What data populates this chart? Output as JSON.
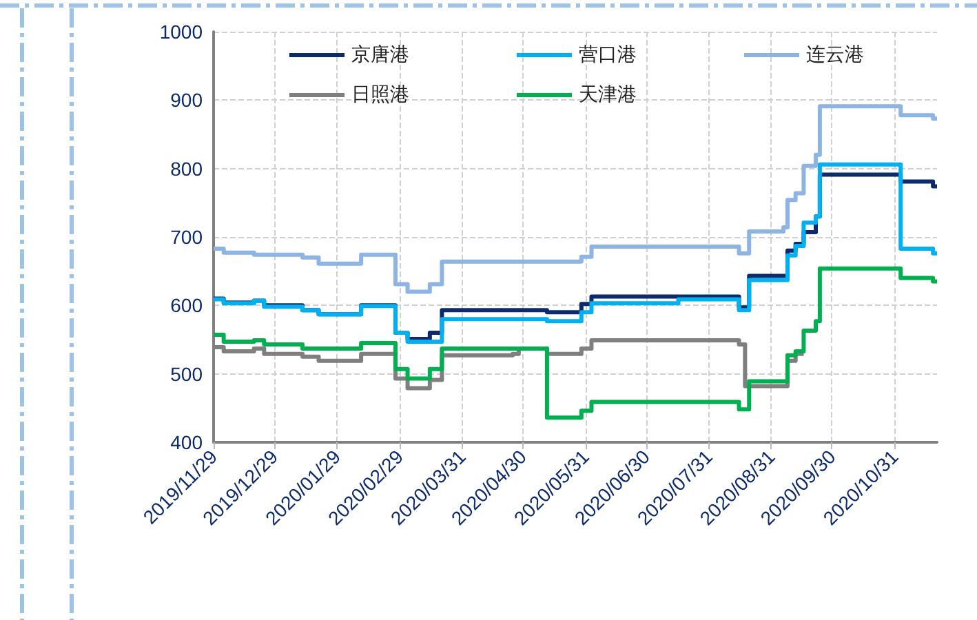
{
  "chart_data": {
    "type": "step",
    "x": [
      "2019-11-29",
      "2019-12-04",
      "2019-12-19",
      "2019-12-24",
      "2020-01-12",
      "2020-01-20",
      "2020-02-10",
      "2020-02-27",
      "2020-03-04",
      "2020-03-15",
      "2020-03-21",
      "2020-04-25",
      "2020-04-28",
      "2020-05-12",
      "2020-05-29",
      "2020-06-03",
      "2020-07-16",
      "2020-08-15",
      "2020-08-18",
      "2020-08-20",
      "2020-09-06",
      "2020-09-08",
      "2020-09-12",
      "2020-09-16",
      "2020-09-22",
      "2020-09-24",
      "2020-11-03",
      "2020-11-19",
      "2020-11-21"
    ],
    "series": [
      {
        "name": "京唐港",
        "color": "#0d2a6b",
        "values": [
          610,
          604,
          607,
          600,
          593,
          587,
          600,
          560,
          551,
          560,
          593,
          593,
          593,
          590,
          602,
          613,
          613,
          597,
          597,
          643,
          643,
          680,
          690,
          707,
          730,
          791,
          781,
          774,
          774
        ]
      },
      {
        "name": "营口港",
        "color": "#00b0f0",
        "values": [
          609,
          603,
          607,
          598,
          593,
          587,
          599,
          560,
          547,
          547,
          580,
          580,
          580,
          577,
          590,
          603,
          609,
          593,
          593,
          637,
          637,
          673,
          687,
          721,
          730,
          806,
          683,
          676,
          676
        ]
      },
      {
        "name": "连云港",
        "color": "#8db4e2",
        "values": [
          683,
          677,
          674,
          674,
          670,
          661,
          674,
          631,
          620,
          631,
          664,
          664,
          664,
          664,
          671,
          686,
          686,
          676,
          676,
          708,
          714,
          754,
          764,
          804,
          820,
          891,
          878,
          873,
          873
        ]
      },
      {
        "name": "日照港",
        "color": "#7f7f7f",
        "values": [
          539,
          533,
          537,
          529,
          525,
          519,
          529,
          493,
          479,
          491,
          527,
          529,
          537,
          529,
          537,
          549,
          549,
          543,
          482,
          482,
          482,
          519,
          529,
          529,
          null,
          null,
          null,
          null,
          null
        ]
      },
      {
        "name": "天津港",
        "color": "#00b050",
        "values": [
          557,
          547,
          549,
          543,
          537,
          537,
          545,
          507,
          493,
          507,
          537,
          537,
          537,
          436,
          446,
          459,
          459,
          448,
          448,
          489,
          489,
          527,
          533,
          563,
          577,
          654,
          640,
          635,
          635
        ]
      }
    ],
    "xlim": [
      "2019-11-29",
      "2020-11-21"
    ],
    "xticks": [
      {
        "value": "2019-11-29",
        "label": "2019/11/29"
      },
      {
        "value": "2019-12-29",
        "label": "2019/12/29"
      },
      {
        "value": "2020-01-29",
        "label": "2020/01/29"
      },
      {
        "value": "2020-02-29",
        "label": "2020/02/29"
      },
      {
        "value": "2020-03-31",
        "label": "2020/03/31"
      },
      {
        "value": "2020-04-30",
        "label": "2020/04/30"
      },
      {
        "value": "2020-05-31",
        "label": "2020/05/31"
      },
      {
        "value": "2020-06-30",
        "label": "2020/06/30"
      },
      {
        "value": "2020-07-31",
        "label": "2020/07/31"
      },
      {
        "value": "2020-08-31",
        "label": "2020/08/31"
      },
      {
        "value": "2020-09-30",
        "label": "2020/09/30"
      },
      {
        "value": "2020-10-31",
        "label": "2020/10/31"
      }
    ],
    "ylim": [
      400,
      1000
    ],
    "yticks": [
      400,
      500,
      600,
      700,
      800,
      900,
      1000
    ],
    "grid": true,
    "legend": "top",
    "marker": "none",
    "line_style": "solid"
  }
}
